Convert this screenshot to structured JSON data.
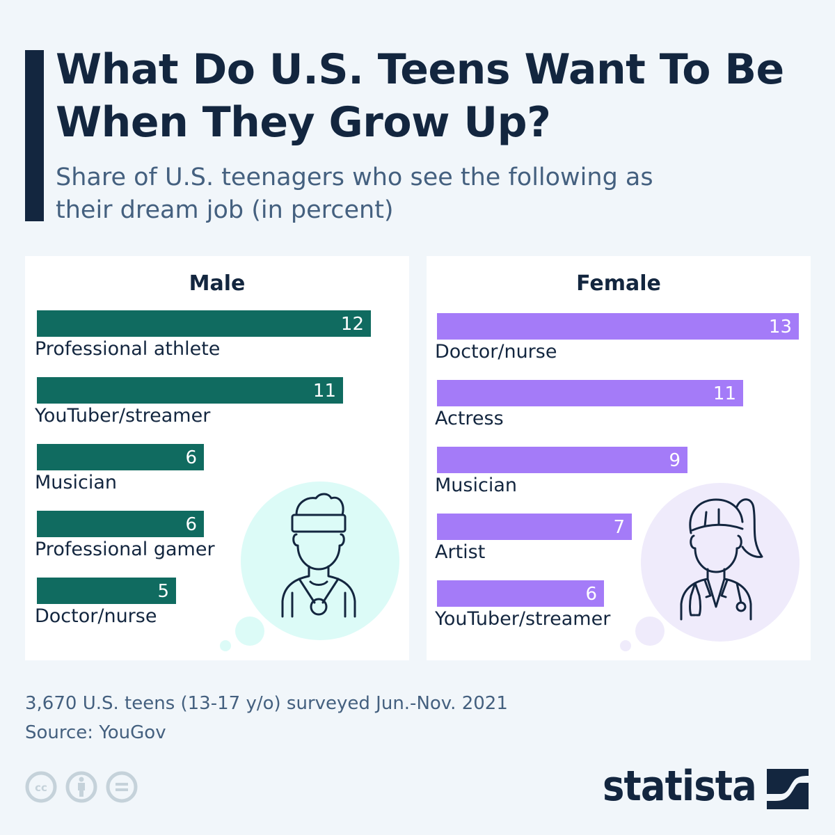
{
  "header": {
    "title": "What Do U.S. Teens Want To Be When They Grow Up?",
    "subtitle": "Share of U.S. teenagers who see the following as their dream job (in percent)"
  },
  "chart_data": [
    {
      "type": "bar",
      "orientation": "horizontal",
      "title": "Male",
      "categories": [
        "Professional athlete",
        "YouTuber/streamer",
        "Musician",
        "Professional gamer",
        "Doctor/nurse"
      ],
      "values": [
        12,
        11,
        6,
        6,
        5
      ],
      "unit": "percent",
      "color": "#106b60",
      "xlim": [
        0,
        13
      ],
      "grid": false,
      "icon": "athlete-with-medal-icon"
    },
    {
      "type": "bar",
      "orientation": "horizontal",
      "title": "Female",
      "categories": [
        "Doctor/nurse",
        "Actress",
        "Musician",
        "Artist",
        "YouTuber/streamer"
      ],
      "values": [
        13,
        11,
        9,
        7,
        6
      ],
      "unit": "percent",
      "color": "#a47bf8",
      "xlim": [
        0,
        13
      ],
      "grid": false,
      "icon": "female-doctor-icon"
    }
  ],
  "footer": {
    "note": "3,670 U.S. teens (13-17 y/o) surveyed Jun.-Nov. 2021",
    "source": "Source: YouGov",
    "license_icons": [
      "cc-icon",
      "attribution-icon",
      "no-derivatives-icon"
    ],
    "brand": "statista"
  },
  "colors": {
    "title": "#13263f",
    "subtitle": "#44607f",
    "male_bar": "#106b60",
    "female_bar": "#a47bf8",
    "male_bubble": "#dcfbf7",
    "female_bubble": "#efebfb",
    "background": "#f1f6fa"
  }
}
